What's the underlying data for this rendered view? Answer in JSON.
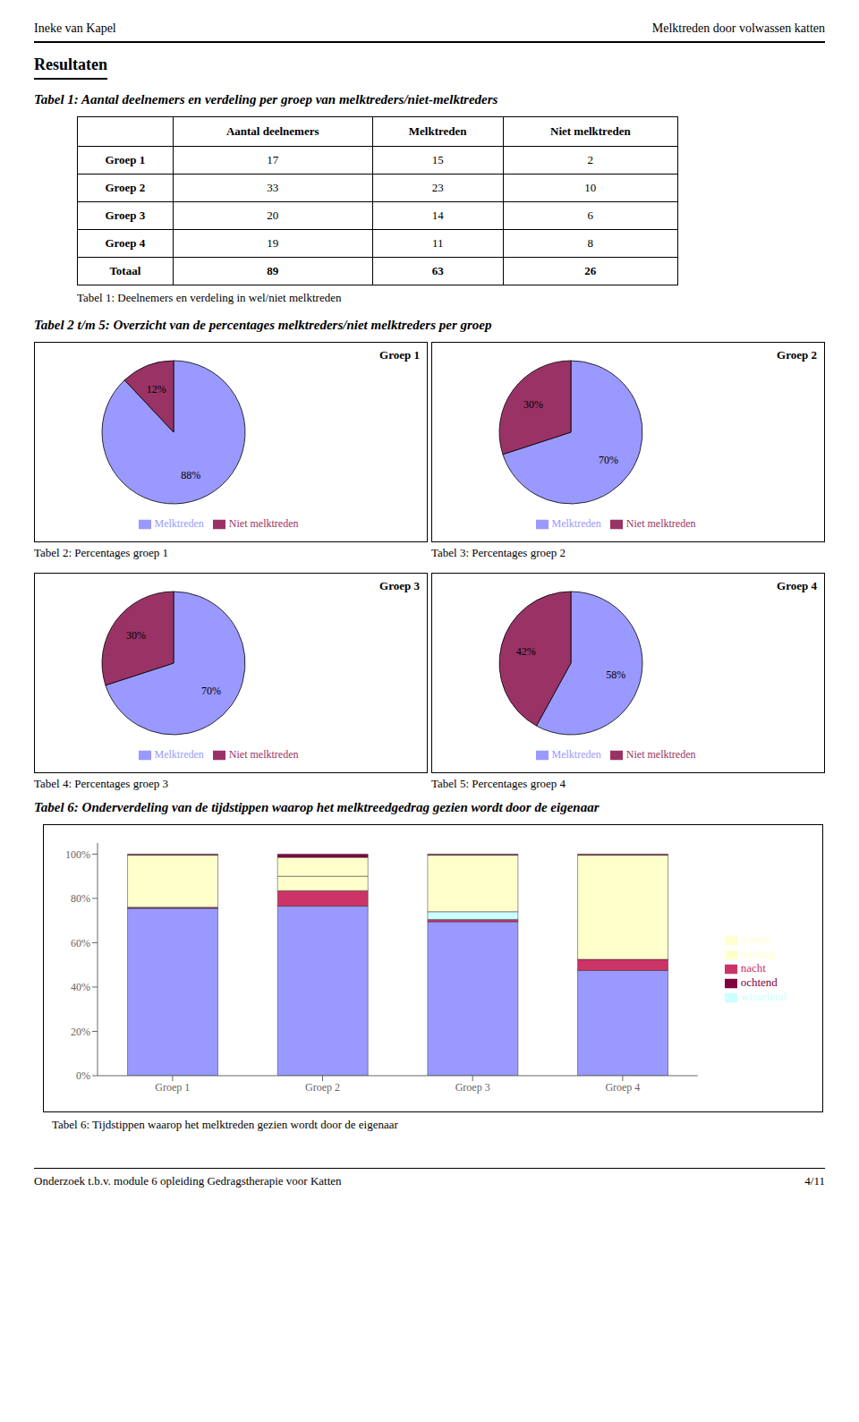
{
  "header": [
    "Ineke van Kapel",
    "Melktreden door volwassen katten"
  ],
  "section_title": "Resultaten",
  "pie_section_title": "Tabel 2 t/m 5: Overzicht van de percentages melktreders/niet melktreders per groep",
  "footer": [
    "Onderzoek t.b.v. module 6 opleiding Gedragstherapie voor Katten",
    "4/11"
  ],
  "chart_data": [
    {
      "type": "table",
      "title": "Tabel 1: Aantal deelnemers en verdeling per groep van melktreders/niet-melktreders",
      "subtitle": "Tabel 1: Deelnemers en verdeling in wel/niet melktreden",
      "columns": [
        null,
        "Aantal deelnemers",
        "Melktreden",
        "Niet melktreden"
      ],
      "rows": [
        [
          "Groep 1",
          17,
          15,
          2
        ],
        [
          "Groep 2",
          33,
          23,
          10
        ],
        [
          "Groep 3",
          20,
          14,
          6
        ],
        [
          "Groep 4",
          19,
          11,
          8
        ],
        [
          "Totaal",
          89,
          63,
          26
        ]
      ]
    },
    {
      "type": "pie",
      "title": "Groep 1",
      "subtitle": "Tabel 2: Percentages groep 1",
      "categories": [
        "Melktreden",
        "Niet melktreden"
      ],
      "values": [
        88,
        12
      ],
      "value_labels": [
        "88%",
        "12%"
      ],
      "colors": [
        "#9999FF",
        "#993366"
      ],
      "data_labels": true,
      "legend": "bottom"
    },
    {
      "type": "pie",
      "title": "Groep 2",
      "subtitle": "Tabel 3: Percentages groep 2",
      "categories": [
        "Melktreden",
        "Niet melktreden"
      ],
      "values": [
        70,
        30
      ],
      "value_labels": [
        "70%",
        "30%"
      ],
      "colors": [
        "#9999FF",
        "#993366"
      ],
      "data_labels": true,
      "legend": "bottom"
    },
    {
      "type": "pie",
      "title": "Groep 3",
      "subtitle": "Tabel 4: Percentages groep 3",
      "categories": [
        "Melktreden",
        "Niet melktreden"
      ],
      "values": [
        70,
        30
      ],
      "value_labels": [
        "70%",
        "30%"
      ],
      "colors": [
        "#9999FF",
        "#993366"
      ],
      "data_labels": true,
      "legend": "bottom"
    },
    {
      "type": "pie",
      "title": "Groep 4",
      "subtitle": "Tabel 5: Percentages groep 4",
      "categories": [
        "Melktreden",
        "Niet melktreden"
      ],
      "values": [
        58,
        42
      ],
      "value_labels": [
        "58%",
        "42%"
      ],
      "colors": [
        "#9999FF",
        "#993366"
      ],
      "data_labels": true,
      "legend": "bottom"
    },
    {
      "type": "bar",
      "title": "Tabel 6: Onderverdeling van de tijdstippen waarop het melktreedgedrag gezien wordt door de eigenaar",
      "subtitle": "Tabel 6: Tijdstippen waarop het melktreden gezien wordt door de eigenaar",
      "stacked": true,
      "grid": false,
      "legend": "right",
      "categories": [
        "Groep 1",
        "Groep 2",
        "Groep 3",
        "Groep 4"
      ],
      "series": [
        {
          "name": null,
          "color": "#9999FF",
          "values": [
            0.755,
            0.765,
            0.695,
            0.475
          ]
        },
        {
          "name": "nacht",
          "color": "#CC3366",
          "values": [
            0.005,
            0.07,
            0.01,
            0.05
          ]
        },
        {
          "name": "middag",
          "color": "#FFFFCC",
          "values": [
            0.0,
            0.065,
            0.0,
            0.0
          ]
        },
        {
          "name": "wisselend",
          "color": "#CCFFFF",
          "values": [
            0.0,
            0.0,
            0.035,
            0.0
          ]
        },
        {
          "name": "avond",
          "color": "#FFFFCC",
          "values": [
            0.235,
            0.085,
            0.255,
            0.47
          ]
        },
        {
          "name": "ochtend",
          "color": "#800040",
          "values": [
            0.005,
            0.015,
            0.005,
            0.005
          ]
        }
      ],
      "ylim": [
        0,
        1.05
      ],
      "yticks": [
        {
          "value": 0,
          "label": "0%"
        },
        {
          "value": 0.2,
          "label": "20%"
        },
        {
          "value": 0.4,
          "label": "40%"
        },
        {
          "value": 0.6,
          "label": "60%"
        },
        {
          "value": 0.8,
          "label": "80%"
        },
        {
          "value": 1.0,
          "label": "100%"
        }
      ]
    }
  ]
}
